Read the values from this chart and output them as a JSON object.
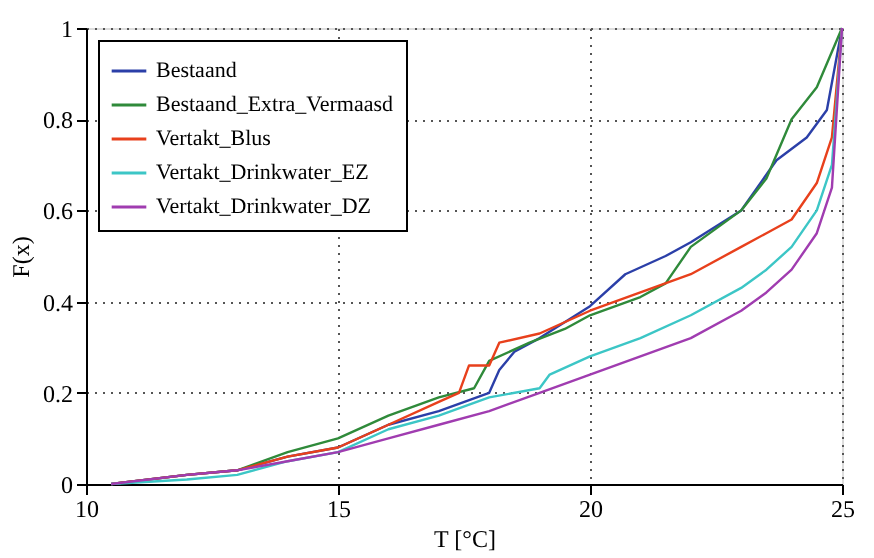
{
  "chart_data": {
    "type": "line",
    "xlabel": "T [°C]",
    "ylabel": "F(x)",
    "xlim": [
      10,
      25
    ],
    "ylim": [
      0,
      1
    ],
    "xticks": [
      10,
      15,
      20,
      25
    ],
    "yticks": [
      0,
      0.2,
      0.4,
      0.6,
      0.8,
      1
    ],
    "grid": true,
    "legend": "top left",
    "line_style": "solid",
    "marker": "none",
    "series": [
      {
        "name": "Bestaand",
        "color": "#2b3fa8",
        "x": [
          10.5,
          12,
          13,
          14,
          15,
          16,
          17,
          18,
          18.2,
          18.5,
          19,
          20,
          20.7,
          21.5,
          22,
          23,
          23.7,
          24.3,
          24.7,
          25
        ],
        "values": [
          0,
          0.02,
          0.03,
          0.06,
          0.08,
          0.13,
          0.16,
          0.2,
          0.25,
          0.29,
          0.32,
          0.39,
          0.46,
          0.5,
          0.53,
          0.6,
          0.71,
          0.76,
          0.82,
          1
        ]
      },
      {
        "name": "Bestaand_Extra_Vermaasd",
        "color": "#2f8a3a",
        "x": [
          10.5,
          12,
          13,
          14,
          15,
          16,
          17,
          17.7,
          18,
          18.8,
          19.5,
          20,
          21,
          21.5,
          22,
          23,
          23.5,
          24,
          24.5,
          25
        ],
        "values": [
          0,
          0.02,
          0.03,
          0.07,
          0.1,
          0.15,
          0.19,
          0.21,
          0.27,
          0.31,
          0.34,
          0.37,
          0.41,
          0.44,
          0.52,
          0.6,
          0.67,
          0.8,
          0.87,
          1
        ]
      },
      {
        "name": "Vertakt_Blus",
        "color": "#e8401c",
        "x": [
          10.5,
          12,
          13,
          14,
          15,
          16,
          17,
          17.4,
          17.6,
          18,
          18.2,
          19,
          20,
          21,
          22,
          23,
          23.5,
          24,
          24.5,
          24.8,
          25
        ],
        "values": [
          0,
          0.02,
          0.03,
          0.06,
          0.08,
          0.13,
          0.18,
          0.2,
          0.26,
          0.26,
          0.31,
          0.33,
          0.38,
          0.42,
          0.46,
          0.52,
          0.55,
          0.58,
          0.66,
          0.76,
          1
        ]
      },
      {
        "name": "Vertakt_Drinkwater_EZ",
        "color": "#3cc6c6",
        "x": [
          10.5,
          12,
          13,
          14,
          15,
          16,
          17,
          18,
          19,
          19.2,
          20,
          21,
          22,
          23,
          23.5,
          24,
          24.5,
          24.8,
          25
        ],
        "values": [
          0,
          0.01,
          0.02,
          0.05,
          0.07,
          0.12,
          0.15,
          0.19,
          0.21,
          0.24,
          0.28,
          0.32,
          0.37,
          0.43,
          0.47,
          0.52,
          0.6,
          0.7,
          1
        ]
      },
      {
        "name": "Vertakt_Drinkwater_DZ",
        "color": "#a03cb0",
        "x": [
          10.5,
          12,
          13,
          14,
          15,
          16,
          17,
          18,
          19,
          20,
          21,
          22,
          23,
          23.5,
          24,
          24.5,
          24.8,
          25
        ],
        "values": [
          0,
          0.02,
          0.03,
          0.05,
          0.07,
          0.1,
          0.13,
          0.16,
          0.2,
          0.24,
          0.28,
          0.32,
          0.38,
          0.42,
          0.47,
          0.55,
          0.65,
          1
        ]
      }
    ]
  }
}
